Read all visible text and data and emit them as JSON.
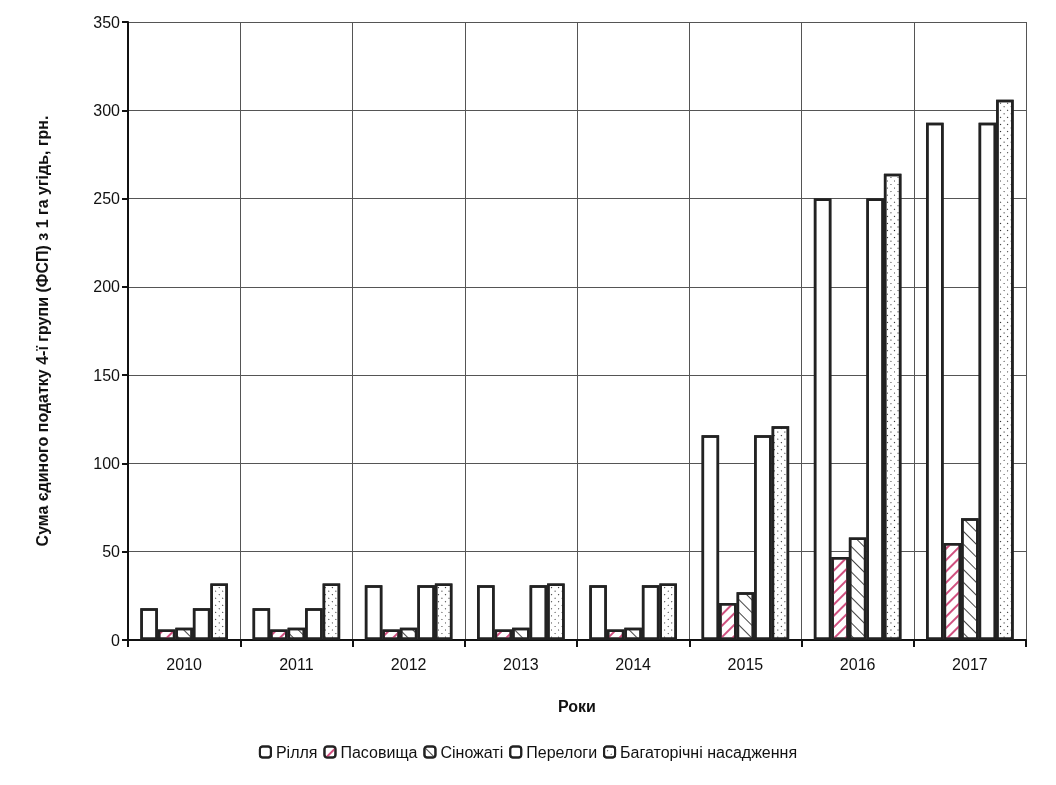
{
  "chart_data": {
    "type": "bar",
    "xlabel": "Роки",
    "ylabel": "Сума єдиного податку 4-ї групи (ФСП) з 1 га угідь, грн.",
    "categories": [
      "2010",
      "2011",
      "2012",
      "2013",
      "2014",
      "2015",
      "2016",
      "2017"
    ],
    "series": [
      {
        "name": "Рілля",
        "color": "#ffffff",
        "values": [
          18,
          18,
          31,
          31,
          31,
          116,
          250,
          293
        ]
      },
      {
        "name": "Пасовища",
        "color": "#ffffff",
        "values": [
          6,
          6,
          6,
          6,
          6,
          21,
          47,
          55
        ]
      },
      {
        "name": "Сіножаті",
        "color": "#ffffff",
        "values": [
          7,
          7,
          7,
          7,
          7,
          27,
          58,
          69
        ]
      },
      {
        "name": "Перелоги",
        "color": "#ffffff",
        "values": [
          18,
          18,
          31,
          31,
          31,
          116,
          250,
          293
        ]
      },
      {
        "name": "Багаторічні насадження",
        "color": "#ffffff",
        "values": [
          32,
          32,
          32,
          32,
          32,
          121,
          264,
          306
        ]
      }
    ],
    "ylim": [
      0,
      350
    ],
    "yticks": [
      0,
      50,
      100,
      150,
      200,
      250,
      300,
      350
    ],
    "grid": true,
    "legend": "bottom"
  }
}
